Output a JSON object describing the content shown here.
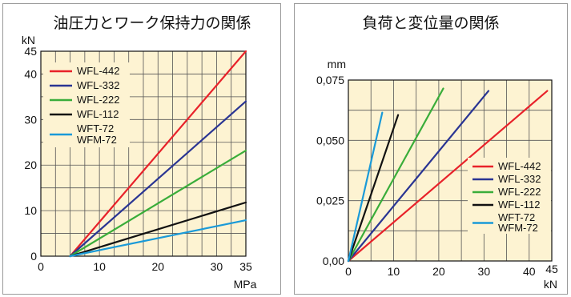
{
  "chart_data": [
    {
      "type": "line",
      "title": "油圧力とワーク保持力の関係",
      "xlabel": "MPa",
      "ylabel": "kN",
      "xlim": [
        0,
        35
      ],
      "ylim": [
        0,
        45
      ],
      "xticks": [
        0,
        10,
        20,
        30,
        35
      ],
      "yticks": [
        0,
        10,
        20,
        30,
        40,
        45
      ],
      "grid": true,
      "legend_position": "top-left",
      "background": "#fdf3d2",
      "series": [
        {
          "name": "WFL-442",
          "color": "#e8222a",
          "x": [
            5,
            35
          ],
          "y": [
            0,
            45
          ]
        },
        {
          "name": "WFL-332",
          "color": "#2a3593",
          "x": [
            5,
            35
          ],
          "y": [
            0,
            34
          ]
        },
        {
          "name": "WFL-222",
          "color": "#3aad3a",
          "x": [
            5,
            35
          ],
          "y": [
            0,
            23.2
          ]
        },
        {
          "name": "WFL-112",
          "color": "#111111",
          "x": [
            5,
            35
          ],
          "y": [
            0,
            11.8
          ]
        },
        {
          "name": "WFT-72\nWFM-72",
          "color": "#1a9ad8",
          "x": [
            5,
            35
          ],
          "y": [
            0,
            7.9
          ]
        }
      ]
    },
    {
      "type": "line",
      "title": "負荷と変位量の関係",
      "xlabel": "kN",
      "ylabel": "mm",
      "xlim": [
        0,
        45
      ],
      "ylim": [
        0,
        0.075
      ],
      "xticks": [
        0,
        10,
        20,
        30,
        40,
        45
      ],
      "xtick_labels": [
        "0",
        "10",
        "20",
        "30",
        "40",
        "45"
      ],
      "yticks": [
        0,
        0.025,
        0.05,
        0.075
      ],
      "ytick_labels": [
        "0,00",
        "0,025",
        "0,050",
        "0,075"
      ],
      "grid": true,
      "legend_position": "bottom-right",
      "background": "#fdf3d2",
      "series": [
        {
          "name": "WFL-442",
          "color": "#e8222a",
          "x": [
            0,
            44
          ],
          "y": [
            0,
            0.0705
          ]
        },
        {
          "name": "WFL-332",
          "color": "#2a3593",
          "x": [
            0,
            31
          ],
          "y": [
            0,
            0.0705
          ]
        },
        {
          "name": "WFL-222",
          "color": "#3aad3a",
          "x": [
            0,
            21
          ],
          "y": [
            0,
            0.0715
          ]
        },
        {
          "name": "WFL-112",
          "color": "#111111",
          "x": [
            0,
            11
          ],
          "y": [
            0,
            0.0605
          ]
        },
        {
          "name": "WFT-72\nWFM-72",
          "color": "#1a9ad8",
          "x": [
            0,
            7.5
          ],
          "y": [
            0,
            0.0615
          ]
        }
      ]
    }
  ]
}
